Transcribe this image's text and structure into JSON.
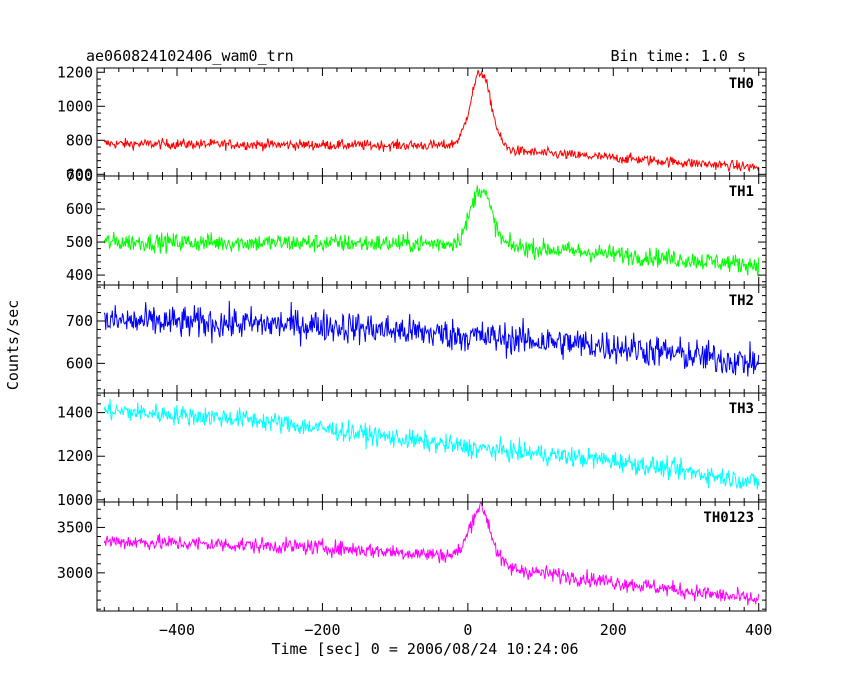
{
  "header": {
    "left": "ae060824102406_wam0_trn",
    "right": "Bin time: 1.0 s"
  },
  "axes": {
    "xlabel": "Time [sec] 0 = 2006/08/24 10:24:06",
    "ylabel": "Counts/sec",
    "xlim": [
      -510,
      410
    ],
    "xticks": [
      -400,
      -200,
      0,
      200,
      400
    ]
  },
  "chart_data": [
    {
      "type": "line",
      "label": "TH0",
      "color": "#ff0000",
      "ylim": [
        590,
        1225
      ],
      "yticks": [
        600,
        800,
        1000,
        1200
      ],
      "baseline": [
        [
          -500,
          780
        ],
        [
          -100,
          770
        ],
        [
          0,
          770
        ],
        [
          30,
          750
        ],
        [
          100,
          725
        ],
        [
          400,
          640
        ]
      ],
      "noise": 60,
      "peak": {
        "x": 18,
        "height": 440,
        "width": 14
      }
    },
    {
      "type": "line",
      "label": "TH1",
      "color": "#00ff00",
      "ylim": [
        370,
        700
      ],
      "yticks": [
        400,
        500,
        600,
        700
      ],
      "baseline": [
        [
          -500,
          500
        ],
        [
          0,
          495
        ],
        [
          100,
          480
        ],
        [
          400,
          430
        ]
      ],
      "noise": 55,
      "peak": {
        "x": 18,
        "height": 170,
        "width": 14
      }
    },
    {
      "type": "line",
      "label": "TH2",
      "color": "#0000ff",
      "ylim": [
        530,
        785
      ],
      "yticks": [
        600,
        700
      ],
      "baseline": [
        [
          -500,
          700
        ],
        [
          -200,
          690
        ],
        [
          0,
          665
        ],
        [
          200,
          640
        ],
        [
          400,
          600
        ]
      ],
      "noise": 75,
      "peak": null
    },
    {
      "type": "line",
      "label": "TH3",
      "color": "#00ffff",
      "ylim": [
        990,
        1490
      ],
      "yticks": [
        1000,
        1200,
        1400
      ],
      "baseline": [
        [
          -500,
          1410
        ],
        [
          -300,
          1370
        ],
        [
          0,
          1240
        ],
        [
          200,
          1180
        ],
        [
          400,
          1080
        ]
      ],
      "noise": 90,
      "peak": null
    },
    {
      "type": "line",
      "label": "TH0123",
      "color": "#ff00ff",
      "ylim": [
        2580,
        3780
      ],
      "yticks": [
        3000,
        3500
      ],
      "baseline": [
        [
          -500,
          3350
        ],
        [
          -200,
          3280
        ],
        [
          0,
          3180
        ],
        [
          30,
          3080
        ],
        [
          100,
          3000
        ],
        [
          400,
          2700
        ]
      ],
      "noise": 170,
      "peak": {
        "x": 18,
        "height": 600,
        "width": 14
      }
    }
  ]
}
